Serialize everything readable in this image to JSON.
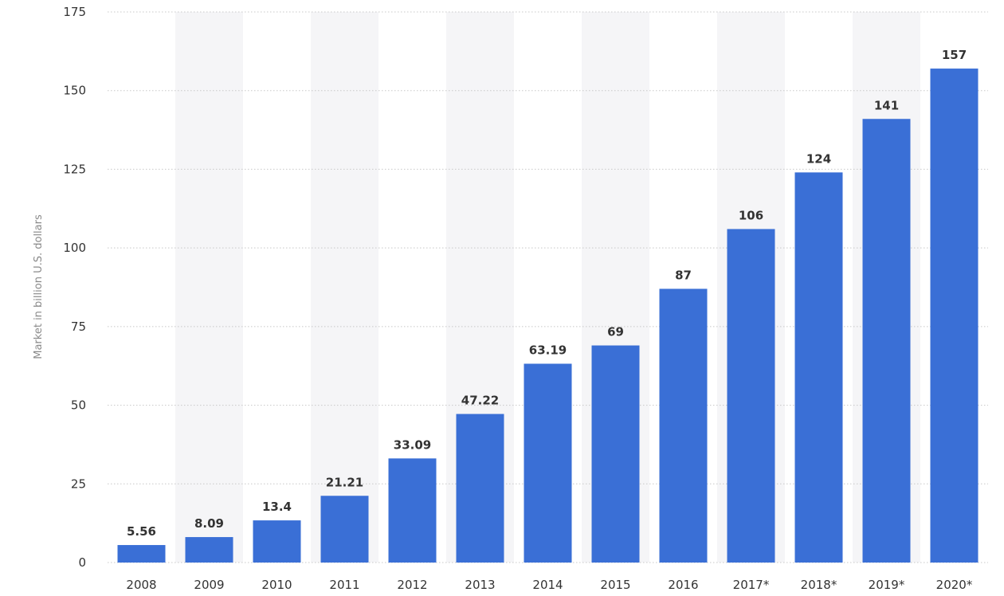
{
  "chart_data": {
    "type": "bar",
    "ylabel": "Market in billion U.S. dollars",
    "xlabel": "",
    "title": "",
    "ylim": [
      0,
      175
    ],
    "yticks": [
      0,
      25,
      50,
      75,
      100,
      125,
      150,
      175
    ],
    "grid": true,
    "legend": "none",
    "bar_color": "#3a6fd6",
    "band_color": "#f5f5f7",
    "categories": [
      "2008",
      "2009",
      "2010",
      "2011",
      "2012",
      "2013",
      "2014",
      "2015",
      "2016",
      "2017*",
      "2018*",
      "2019*",
      "2020*"
    ],
    "values": [
      5.56,
      8.09,
      13.4,
      21.21,
      33.09,
      47.22,
      63.19,
      69,
      87,
      106,
      124,
      141,
      157
    ],
    "value_labels": [
      "5.56",
      "8.09",
      "13.4",
      "21.21",
      "33.09",
      "47.22",
      "63.19",
      "69",
      "87",
      "106",
      "124",
      "141",
      "157"
    ]
  }
}
